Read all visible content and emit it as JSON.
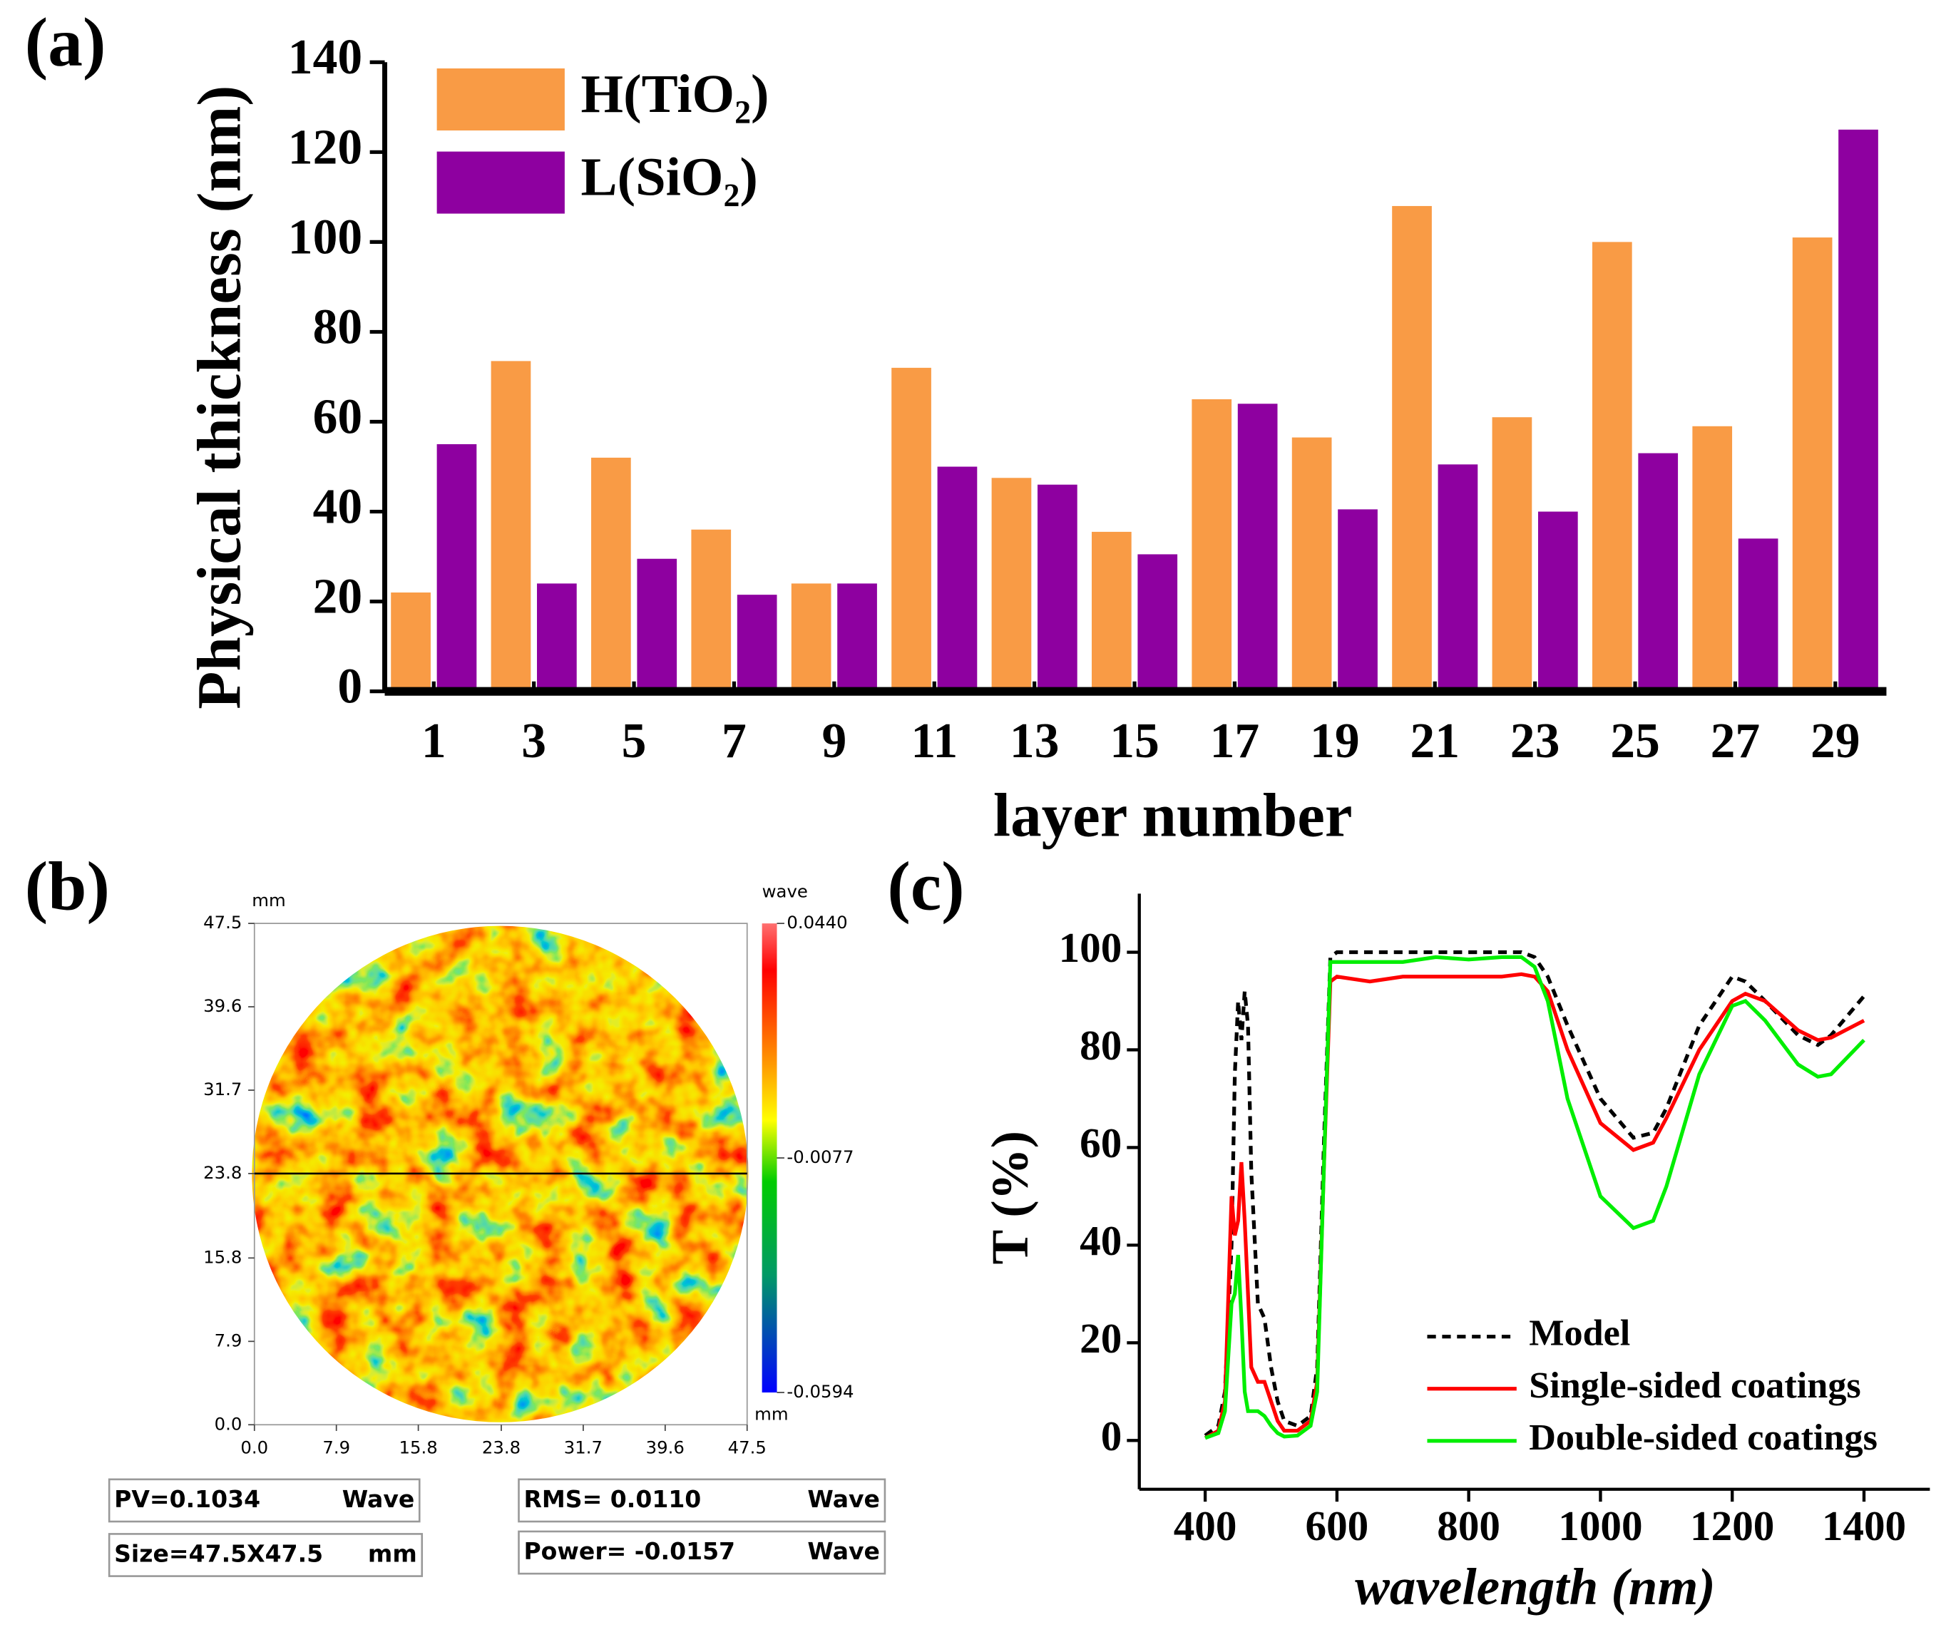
{
  "chart_data": [
    {
      "type": "bar",
      "panel": "(a)",
      "x_label": "layer number",
      "y_label": "Physical thickness (nm)",
      "categories": [
        "1",
        "3",
        "5",
        "7",
        "9",
        "11",
        "13",
        "15",
        "17",
        "19",
        "21",
        "23",
        "25",
        "27",
        "29"
      ],
      "series": [
        {
          "name": "H(TiO₂)",
          "color": "#f99b45",
          "values": [
            22,
            73.5,
            52,
            36,
            24,
            72,
            47.5,
            35.5,
            65,
            56.5,
            108,
            61,
            100,
            59,
            101
          ]
        },
        {
          "name": "L(SiO₂)",
          "color": "#8e00a0",
          "values": [
            55,
            24,
            29.5,
            21.5,
            24,
            50,
            46,
            30.5,
            64,
            40.5,
            50.5,
            40,
            53,
            34,
            125
          ]
        }
      ],
      "ylim": [
        0,
        140
      ],
      "yticks": [
        0,
        20,
        40,
        60,
        80,
        100,
        120,
        140
      ],
      "legend": "upper left"
    },
    {
      "type": "heatmap",
      "panel": "(b)",
      "x_unit": "mm",
      "y_unit": "mm",
      "xlim": [
        0,
        47.5
      ],
      "ylim": [
        0,
        47.5
      ],
      "xticks": [
        {
          "value": 0,
          "label": "0.0"
        },
        7.9,
        15.8,
        23.8,
        31.7,
        39.6,
        47.5
      ],
      "yticks": [
        {
          "value": 0,
          "label": "0.0"
        },
        7.9,
        15.8,
        23.8,
        31.7,
        39.6,
        47.5
      ],
      "section_line_y": 23.8,
      "colorbar": {
        "label": "wave",
        "lim": [
          -0.0594,
          0.044
        ],
        "ticks": [
          {
            "value": 0.044,
            "label": "0.0440"
          },
          -0.0077,
          -0.0594
        ]
      },
      "info_boxes": [
        {
          "text": "PV=0.1034",
          "unit": "Wave"
        },
        {
          "text": "Size=47.5X47.5",
          "unit": "mm"
        },
        {
          "text": "RMS=  0.0110",
          "unit": "Wave"
        },
        {
          "text": "Power=  -0.0157",
          "unit": "Wave"
        }
      ]
    },
    {
      "type": "line",
      "panel": "(c)",
      "x_label": "wavelength (nm)",
      "y_label": "T (%)",
      "x": [
        400,
        420,
        430,
        440,
        445,
        450,
        455,
        460,
        465,
        470,
        480,
        490,
        500,
        510,
        520,
        540,
        560,
        570,
        580,
        590,
        600,
        650,
        700,
        750,
        800,
        850,
        880,
        900,
        920,
        950,
        1000,
        1050,
        1080,
        1100,
        1150,
        1200,
        1220,
        1250,
        1300,
        1330,
        1350,
        1400
      ],
      "series": [
        {
          "name": "Model",
          "color": "#000000",
          "linestyle": "dashed",
          "values": [
            1,
            3,
            10,
            40,
            75,
            90,
            82,
            92,
            85,
            55,
            28,
            25,
            15,
            8,
            4,
            3,
            5,
            15,
            60,
            99,
            100,
            100,
            100,
            100,
            100,
            100,
            100,
            99,
            95,
            85,
            70,
            62,
            63,
            68,
            85,
            95,
            94,
            90,
            83,
            81,
            83,
            91
          ]
        },
        {
          "name": "Single-sided coatings",
          "color": "#ff0000",
          "linestyle": "solid",
          "values": [
            0.5,
            2,
            8,
            50,
            42,
            45,
            57,
            45,
            30,
            15,
            12,
            12,
            8,
            4,
            2,
            2,
            4,
            12,
            55,
            94,
            95,
            94,
            95,
            95,
            95,
            95,
            95.5,
            95,
            92,
            80,
            65,
            59.5,
            61,
            66,
            80,
            90,
            91.5,
            90,
            84,
            82,
            82.5,
            86
          ]
        },
        {
          "name": "Double-sided coatings",
          "color": "#00ee00",
          "linestyle": "solid",
          "values": [
            0.5,
            1.5,
            6,
            28,
            30,
            38,
            25,
            10,
            6,
            6,
            6,
            5,
            3,
            1.5,
            0.8,
            1,
            3,
            10,
            55,
            98,
            98,
            98,
            98,
            99,
            98.5,
            99,
            99,
            97,
            90,
            70,
            50,
            43.5,
            45,
            52,
            75,
            89,
            90,
            86,
            77,
            74.5,
            75,
            82
          ]
        }
      ],
      "xlim": [
        300,
        1500
      ],
      "xticks": [
        400,
        600,
        800,
        1000,
        1200,
        1400
      ],
      "ylim": [
        -10,
        112
      ],
      "yticks": [
        0,
        20,
        40,
        60,
        80,
        100
      ],
      "legend": "lower right"
    }
  ]
}
